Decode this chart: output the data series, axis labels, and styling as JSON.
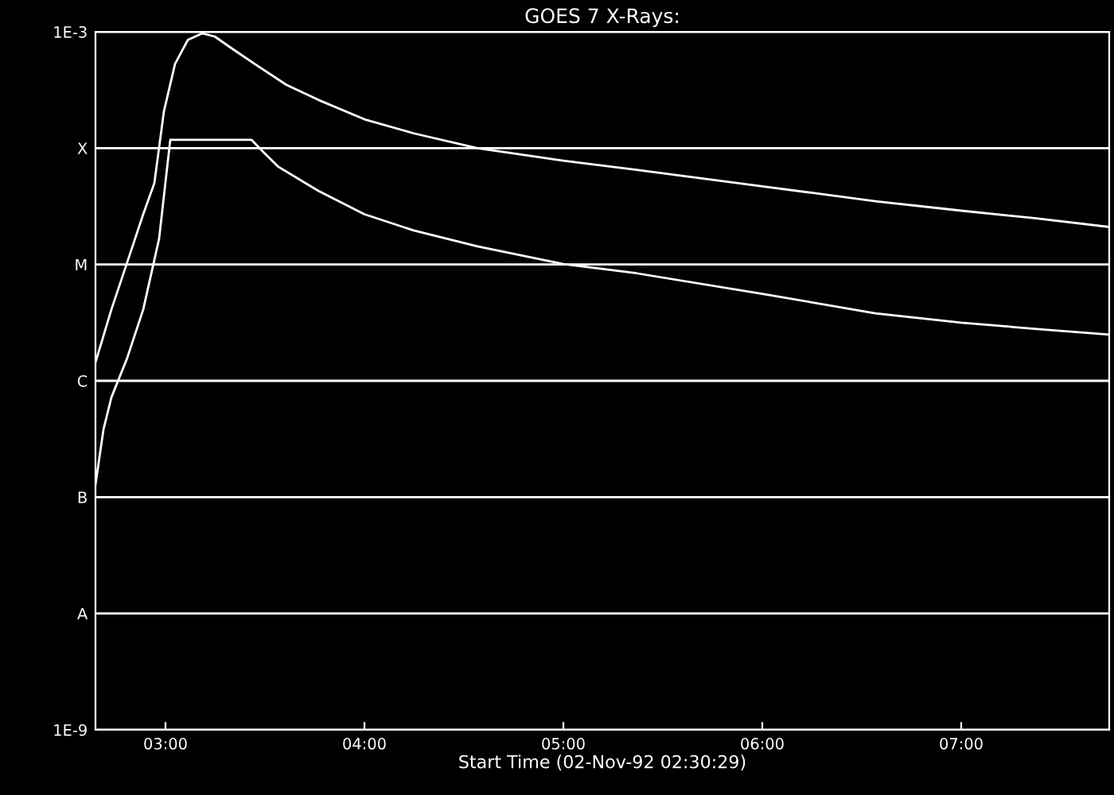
{
  "chart_data": {
    "type": "line",
    "title": "GOES 7 X-Rays:",
    "xlabel": "Start Time (02-Nov-92 02:30:29)",
    "log": "y",
    "grid": "y",
    "marker": "none",
    "line_style": "solid",
    "xlim": [
      2.648,
      7.744
    ],
    "xticks": [
      {
        "value": 3,
        "label": "03:00"
      },
      {
        "value": 4,
        "label": "04:00"
      },
      {
        "value": 5,
        "label": "05:00"
      },
      {
        "value": 6,
        "label": "06:00"
      },
      {
        "value": 7,
        "label": "07:00"
      }
    ],
    "ylim": [
      1e-09,
      0.001
    ],
    "yticks": [
      {
        "value": 1e-09,
        "label": "1E-9"
      },
      {
        "value": 1e-08,
        "label": "A"
      },
      {
        "value": 1e-07,
        "label": "B"
      },
      {
        "value": 1e-06,
        "label": "C"
      },
      {
        "value": 1e-05,
        "label": "M"
      },
      {
        "value": 0.0001,
        "label": "X"
      },
      {
        "value": 0.001,
        "label": "1E-3"
      }
    ],
    "series": [
      {
        "color": "#ffffff",
        "x": [
          2.648,
          2.728,
          2.808,
          2.888,
          2.944,
          2.992,
          3.048,
          3.112,
          3.184,
          3.248,
          3.328,
          3.448,
          3.608,
          3.768,
          4.0,
          4.248,
          4.568,
          5.0,
          5.368,
          6.0,
          6.568,
          7.0,
          7.368,
          7.744
        ],
        "values": [
          1.44e-06,
          4.1e-06,
          1.05e-05,
          2.7e-05,
          5e-05,
          0.000207,
          0.00053,
          0.00085,
          0.00097,
          0.00091,
          0.00073,
          0.00053,
          0.00035,
          0.00026,
          0.000177,
          0.000134,
          0.0001,
          7.8e-05,
          6.5e-05,
          4.7e-05,
          3.5e-05,
          2.9e-05,
          2.5e-05,
          2.1e-05
        ]
      },
      {
        "color": "#ffffff",
        "x": [
          2.648,
          2.688,
          2.728,
          2.808,
          2.888,
          2.968,
          3.024,
          3.128,
          3.432,
          3.488,
          3.568,
          3.768,
          4.0,
          4.248,
          4.568,
          5.0,
          5.368,
          6.0,
          6.568,
          7.0,
          7.368,
          7.744
        ],
        "values": [
          1.28e-07,
          3.8e-07,
          7.2e-07,
          1.58e-06,
          4.1e-06,
          1.67e-05,
          0.000118,
          0.000118,
          0.000118,
          9.4e-05,
          6.9e-05,
          4.3e-05,
          2.7e-05,
          1.96e-05,
          1.43e-05,
          1.01e-05,
          8.4e-06,
          5.6e-06,
          3.8e-06,
          3.16e-06,
          2.8e-06,
          2.5e-06
        ]
      }
    ]
  }
}
